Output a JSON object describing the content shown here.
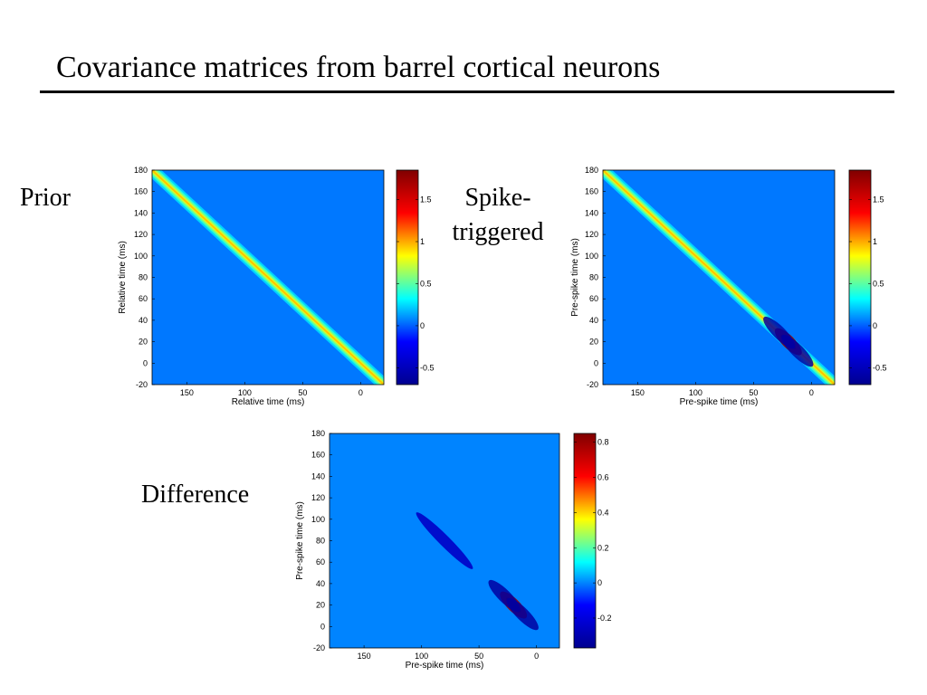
{
  "slide": {
    "title": "Covariance matrices from barrel cortical neurons",
    "label_prior": "Prior",
    "label_spike_1": "Spike-",
    "label_spike_2": "triggered",
    "label_difference": "Difference"
  },
  "colors": {
    "jet": [
      "#00008f",
      "#0000ff",
      "#00ffff",
      "#ffff00",
      "#ff0000",
      "#800000"
    ]
  },
  "chart_data": [
    {
      "name": "prior",
      "type": "heatmap",
      "xlabel": "Relative time (ms)",
      "ylabel": "Relative time (ms)",
      "xlim": [
        180,
        -20
      ],
      "ylim": [
        -20,
        180
      ],
      "xticks": [
        150,
        100,
        50,
        0
      ],
      "yticks": [
        180,
        160,
        140,
        120,
        100,
        80,
        60,
        40,
        20,
        0,
        -20
      ],
      "clim": [
        -0.7,
        1.85
      ],
      "colorbar_ticks": [
        1.5,
        1,
        0.5,
        0,
        -0.5
      ],
      "background_value": 0.05,
      "diagonal_peak": 0.95,
      "features": []
    },
    {
      "name": "spike-triggered",
      "type": "heatmap",
      "xlabel": "Pre-spike time (ms)",
      "ylabel": "Pre-spike time (ms)",
      "xlim": [
        180,
        -20
      ],
      "ylim": [
        -20,
        180
      ],
      "xticks": [
        150,
        100,
        50,
        0
      ],
      "yticks": [
        180,
        160,
        140,
        120,
        100,
        80,
        60,
        40,
        20,
        0,
        -20
      ],
      "clim": [
        -0.7,
        1.85
      ],
      "colorbar_ticks": [
        1.5,
        1,
        0.5,
        0,
        -0.5
      ],
      "background_value": 0.05,
      "diagonal_peak": 0.95,
      "features": [
        {
          "kind": "diag-peak",
          "center": 20,
          "value": 1.8
        },
        {
          "kind": "side-dip",
          "center": 20,
          "value": -0.6
        }
      ]
    },
    {
      "name": "difference",
      "type": "heatmap",
      "xlabel": "Pre-spike time (ms)",
      "ylabel": "Pre-spike time (ms)",
      "xlim": [
        180,
        -20
      ],
      "ylim": [
        -20,
        180
      ],
      "xticks": [
        150,
        100,
        50,
        0
      ],
      "yticks": [
        180,
        160,
        140,
        120,
        100,
        80,
        60,
        40,
        20,
        0,
        -20
      ],
      "clim": [
        -0.37,
        0.85
      ],
      "colorbar_ticks": [
        0.8,
        0.6,
        0.4,
        0.2,
        0,
        -0.2
      ],
      "background_value": 0.0,
      "diagonal_peak": 0.0,
      "features": [
        {
          "kind": "diag-dip",
          "center": 80,
          "value": -0.25
        },
        {
          "kind": "diag-peak",
          "center": 20,
          "value": 0.8
        },
        {
          "kind": "side-dip",
          "center": 20,
          "value": -0.33
        }
      ]
    }
  ]
}
